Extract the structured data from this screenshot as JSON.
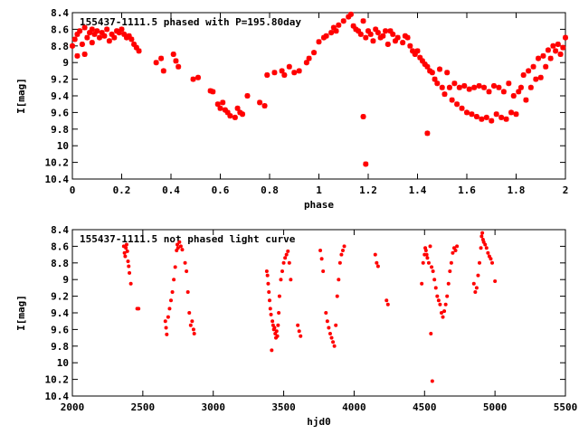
{
  "chart_data": [
    {
      "type": "scatter",
      "title": "155437-1111.5 phased with P=195.80day",
      "xlabel": "phase",
      "ylabel": "I[mag]",
      "xlim": [
        0,
        2
      ],
      "ylim": [
        10.4,
        8.4
      ],
      "y_inverted": true,
      "grid": false,
      "marker": "star",
      "color": "#ff0000",
      "x_ticks": [
        "0",
        "0.2",
        "0.4",
        "0.6",
        "0.8",
        "1",
        "1.2",
        "1.4",
        "1.6",
        "1.8",
        "2"
      ],
      "y_ticks": [
        "8.4",
        "8.6",
        "8.8",
        "9",
        "9.2",
        "9.4",
        "9.6",
        "9.8",
        "10",
        "10.2",
        "10.4"
      ],
      "points": [
        [
          0.0,
          8.8
        ],
        [
          0.01,
          8.72
        ],
        [
          0.02,
          8.66
        ],
        [
          0.02,
          8.92
        ],
        [
          0.03,
          8.62
        ],
        [
          0.04,
          8.78
        ],
        [
          0.05,
          8.58
        ],
        [
          0.05,
          8.9
        ],
        [
          0.06,
          8.7
        ],
        [
          0.07,
          8.64
        ],
        [
          0.08,
          8.6
        ],
        [
          0.08,
          8.76
        ],
        [
          0.09,
          8.66
        ],
        [
          0.1,
          8.62
        ],
        [
          0.11,
          8.7
        ],
        [
          0.12,
          8.64
        ],
        [
          0.13,
          8.68
        ],
        [
          0.14,
          8.6
        ],
        [
          0.15,
          8.74
        ],
        [
          0.16,
          8.66
        ],
        [
          0.17,
          8.7
        ],
        [
          0.18,
          8.62
        ],
        [
          0.19,
          8.64
        ],
        [
          0.2,
          8.6
        ],
        [
          0.21,
          8.66
        ],
        [
          0.22,
          8.7
        ],
        [
          0.23,
          8.68
        ],
        [
          0.24,
          8.72
        ],
        [
          0.25,
          8.78
        ],
        [
          0.26,
          8.82
        ],
        [
          0.27,
          8.86
        ],
        [
          0.34,
          9.0
        ],
        [
          0.36,
          8.95
        ],
        [
          0.37,
          9.1
        ],
        [
          0.41,
          8.9
        ],
        [
          0.42,
          8.98
        ],
        [
          0.43,
          9.05
        ],
        [
          0.49,
          9.2
        ],
        [
          0.51,
          9.18
        ],
        [
          0.56,
          9.34
        ],
        [
          0.57,
          9.35
        ],
        [
          0.59,
          9.5
        ],
        [
          0.6,
          9.55
        ],
        [
          0.61,
          9.48
        ],
        [
          0.62,
          9.57
        ],
        [
          0.63,
          9.6
        ],
        [
          0.64,
          9.64
        ],
        [
          0.66,
          9.66
        ],
        [
          0.67,
          9.55
        ],
        [
          0.68,
          9.6
        ],
        [
          0.69,
          9.62
        ],
        [
          0.71,
          9.4
        ],
        [
          0.76,
          9.48
        ],
        [
          0.78,
          9.52
        ],
        [
          0.79,
          9.15
        ],
        [
          0.82,
          9.12
        ],
        [
          0.85,
          9.1
        ],
        [
          0.86,
          9.15
        ],
        [
          0.88,
          9.05
        ],
        [
          0.9,
          9.12
        ],
        [
          0.92,
          9.1
        ],
        [
          0.95,
          9.0
        ],
        [
          0.96,
          8.95
        ],
        [
          0.98,
          8.88
        ],
        [
          1.0,
          8.75
        ],
        [
          1.02,
          8.7
        ],
        [
          1.03,
          8.68
        ],
        [
          1.05,
          8.64
        ],
        [
          1.06,
          8.58
        ],
        [
          1.07,
          8.62
        ],
        [
          1.08,
          8.55
        ],
        [
          1.1,
          8.5
        ],
        [
          1.12,
          8.45
        ],
        [
          1.13,
          8.42
        ],
        [
          1.14,
          8.56
        ],
        [
          1.15,
          8.6
        ],
        [
          1.16,
          8.62
        ],
        [
          1.17,
          8.66
        ],
        [
          1.18,
          8.5
        ],
        [
          1.19,
          8.7
        ],
        [
          1.2,
          8.62
        ],
        [
          1.21,
          8.66
        ],
        [
          1.22,
          8.74
        ],
        [
          1.23,
          8.6
        ],
        [
          1.24,
          8.64
        ],
        [
          1.25,
          8.7
        ],
        [
          1.26,
          8.68
        ],
        [
          1.27,
          8.62
        ],
        [
          1.28,
          8.78
        ],
        [
          1.29,
          8.62
        ],
        [
          1.3,
          8.66
        ],
        [
          1.31,
          8.74
        ],
        [
          1.32,
          8.7
        ],
        [
          1.34,
          8.76
        ],
        [
          1.35,
          8.68
        ],
        [
          1.36,
          8.7
        ],
        [
          1.37,
          8.8
        ],
        [
          1.38,
          8.86
        ],
        [
          1.39,
          8.9
        ],
        [
          1.4,
          8.86
        ],
        [
          1.41,
          8.94
        ],
        [
          1.42,
          8.98
        ],
        [
          1.43,
          9.02
        ],
        [
          1.44,
          9.05
        ],
        [
          1.45,
          9.1
        ],
        [
          1.46,
          9.12
        ],
        [
          1.47,
          9.2
        ],
        [
          1.48,
          9.25
        ],
        [
          1.49,
          9.08
        ],
        [
          1.5,
          9.3
        ],
        [
          1.51,
          9.38
        ],
        [
          1.52,
          9.12
        ],
        [
          1.53,
          9.3
        ],
        [
          1.54,
          9.45
        ],
        [
          1.55,
          9.25
        ],
        [
          1.56,
          9.5
        ],
        [
          1.57,
          9.3
        ],
        [
          1.58,
          9.55
        ],
        [
          1.59,
          9.28
        ],
        [
          1.6,
          9.6
        ],
        [
          1.61,
          9.32
        ],
        [
          1.62,
          9.62
        ],
        [
          1.63,
          9.3
        ],
        [
          1.64,
          9.65
        ],
        [
          1.65,
          9.28
        ],
        [
          1.66,
          9.68
        ],
        [
          1.67,
          9.3
        ],
        [
          1.68,
          9.66
        ],
        [
          1.69,
          9.35
        ],
        [
          1.7,
          9.7
        ],
        [
          1.71,
          9.28
        ],
        [
          1.72,
          9.62
        ],
        [
          1.73,
          9.3
        ],
        [
          1.74,
          9.66
        ],
        [
          1.75,
          9.35
        ],
        [
          1.76,
          9.68
        ],
        [
          1.77,
          9.25
        ],
        [
          1.78,
          9.6
        ],
        [
          1.79,
          9.4
        ],
        [
          1.8,
          9.62
        ],
        [
          1.81,
          9.35
        ],
        [
          1.82,
          9.3
        ],
        [
          1.83,
          9.15
        ],
        [
          1.84,
          9.45
        ],
        [
          1.85,
          9.1
        ],
        [
          1.86,
          9.3
        ],
        [
          1.87,
          9.05
        ],
        [
          1.88,
          9.2
        ],
        [
          1.89,
          8.95
        ],
        [
          1.9,
          9.18
        ],
        [
          1.91,
          8.92
        ],
        [
          1.92,
          9.05
        ],
        [
          1.93,
          8.85
        ],
        [
          1.94,
          8.95
        ],
        [
          1.95,
          8.8
        ],
        [
          1.96,
          8.86
        ],
        [
          1.97,
          8.78
        ],
        [
          1.98,
          8.9
        ],
        [
          1.99,
          8.82
        ],
        [
          2.0,
          8.7
        ],
        [
          1.18,
          9.65
        ],
        [
          1.19,
          10.22
        ],
        [
          1.44,
          9.85
        ]
      ]
    },
    {
      "type": "scatter",
      "title": "155437-1111.5 not phased light curve",
      "xlabel": "hjd0",
      "ylabel": "I[mag]",
      "xlim": [
        2000,
        5500
      ],
      "ylim": [
        10.4,
        8.4
      ],
      "y_inverted": true,
      "grid": false,
      "marker": "dot",
      "color": "#ff0000",
      "x_ticks": [
        "2000",
        "2500",
        "3000",
        "3500",
        "4000",
        "4500",
        "5000",
        "5500"
      ],
      "y_ticks": [
        "8.4",
        "8.6",
        "8.8",
        "9",
        "9.2",
        "9.4",
        "9.6",
        "9.8",
        "10",
        "10.2",
        "10.4"
      ],
      "points": [
        [
          2365,
          8.6
        ],
        [
          2370,
          8.68
        ],
        [
          2375,
          8.72
        ],
        [
          2380,
          8.62
        ],
        [
          2385,
          8.58
        ],
        [
          2390,
          8.66
        ],
        [
          2395,
          8.78
        ],
        [
          2400,
          8.84
        ],
        [
          2405,
          8.92
        ],
        [
          2415,
          9.05
        ],
        [
          2460,
          9.35
        ],
        [
          2470,
          9.35
        ],
        [
          2660,
          9.5
        ],
        [
          2665,
          9.58
        ],
        [
          2670,
          9.66
        ],
        [
          2680,
          9.45
        ],
        [
          2690,
          9.35
        ],
        [
          2700,
          9.25
        ],
        [
          2710,
          9.15
        ],
        [
          2720,
          9.0
        ],
        [
          2730,
          8.85
        ],
        [
          2740,
          8.65
        ],
        [
          2745,
          8.58
        ],
        [
          2750,
          8.62
        ],
        [
          2760,
          8.55
        ],
        [
          2770,
          8.6
        ],
        [
          2780,
          8.64
        ],
        [
          2800,
          8.8
        ],
        [
          2810,
          8.9
        ],
        [
          2820,
          9.15
        ],
        [
          2830,
          9.4
        ],
        [
          2840,
          9.55
        ],
        [
          2850,
          9.5
        ],
        [
          2860,
          9.6
        ],
        [
          2865,
          9.65
        ],
        [
          3380,
          8.9
        ],
        [
          3385,
          8.95
        ],
        [
          3390,
          9.05
        ],
        [
          3395,
          9.15
        ],
        [
          3400,
          9.25
        ],
        [
          3405,
          9.35
        ],
        [
          3410,
          9.42
        ],
        [
          3415,
          9.85
        ],
        [
          3420,
          9.5
        ],
        [
          3425,
          9.55
        ],
        [
          3430,
          9.6
        ],
        [
          3435,
          9.58
        ],
        [
          3440,
          9.65
        ],
        [
          3445,
          9.7
        ],
        [
          3450,
          9.62
        ],
        [
          3455,
          9.68
        ],
        [
          3460,
          9.55
        ],
        [
          3465,
          9.4
        ],
        [
          3470,
          9.2
        ],
        [
          3480,
          9.0
        ],
        [
          3490,
          8.9
        ],
        [
          3500,
          8.8
        ],
        [
          3510,
          8.74
        ],
        [
          3520,
          8.7
        ],
        [
          3530,
          8.66
        ],
        [
          3540,
          8.8
        ],
        [
          3550,
          9.0
        ],
        [
          3600,
          9.55
        ],
        [
          3610,
          9.62
        ],
        [
          3620,
          9.68
        ],
        [
          3760,
          8.65
        ],
        [
          3770,
          8.75
        ],
        [
          3780,
          8.9
        ],
        [
          3800,
          9.4
        ],
        [
          3810,
          9.5
        ],
        [
          3820,
          9.58
        ],
        [
          3830,
          9.65
        ],
        [
          3840,
          9.7
        ],
        [
          3850,
          9.75
        ],
        [
          3860,
          9.8
        ],
        [
          3870,
          9.55
        ],
        [
          3880,
          9.2
        ],
        [
          3890,
          9.0
        ],
        [
          3900,
          8.8
        ],
        [
          3910,
          8.7
        ],
        [
          3920,
          8.65
        ],
        [
          3930,
          8.6
        ],
        [
          4150,
          8.7
        ],
        [
          4160,
          8.8
        ],
        [
          4170,
          8.84
        ],
        [
          4230,
          9.25
        ],
        [
          4240,
          9.3
        ],
        [
          4480,
          9.05
        ],
        [
          4490,
          8.8
        ],
        [
          4500,
          8.7
        ],
        [
          4505,
          8.62
        ],
        [
          4510,
          8.65
        ],
        [
          4515,
          8.7
        ],
        [
          4520,
          8.74
        ],
        [
          4530,
          8.8
        ],
        [
          4540,
          8.6
        ],
        [
          4545,
          9.65
        ],
        [
          4550,
          8.85
        ],
        [
          4555,
          10.22
        ],
        [
          4560,
          8.9
        ],
        [
          4570,
          9.0
        ],
        [
          4580,
          9.1
        ],
        [
          4590,
          9.2
        ],
        [
          4600,
          9.25
        ],
        [
          4610,
          9.3
        ],
        [
          4620,
          9.4
        ],
        [
          4630,
          9.45
        ],
        [
          4640,
          9.38
        ],
        [
          4650,
          9.3
        ],
        [
          4660,
          9.2
        ],
        [
          4670,
          9.05
        ],
        [
          4680,
          8.9
        ],
        [
          4690,
          8.8
        ],
        [
          4700,
          8.68
        ],
        [
          4710,
          8.62
        ],
        [
          4720,
          8.65
        ],
        [
          4730,
          8.6
        ],
        [
          4850,
          9.05
        ],
        [
          4860,
          9.15
        ],
        [
          4870,
          9.1
        ],
        [
          4880,
          8.95
        ],
        [
          4890,
          8.8
        ],
        [
          4900,
          8.62
        ],
        [
          4905,
          8.48
        ],
        [
          4910,
          8.44
        ],
        [
          4915,
          8.52
        ],
        [
          4920,
          8.55
        ],
        [
          4930,
          8.58
        ],
        [
          4940,
          8.62
        ],
        [
          4950,
          8.68
        ],
        [
          4960,
          8.72
        ],
        [
          4970,
          8.75
        ],
        [
          4980,
          8.8
        ],
        [
          5000,
          9.02
        ]
      ]
    }
  ]
}
